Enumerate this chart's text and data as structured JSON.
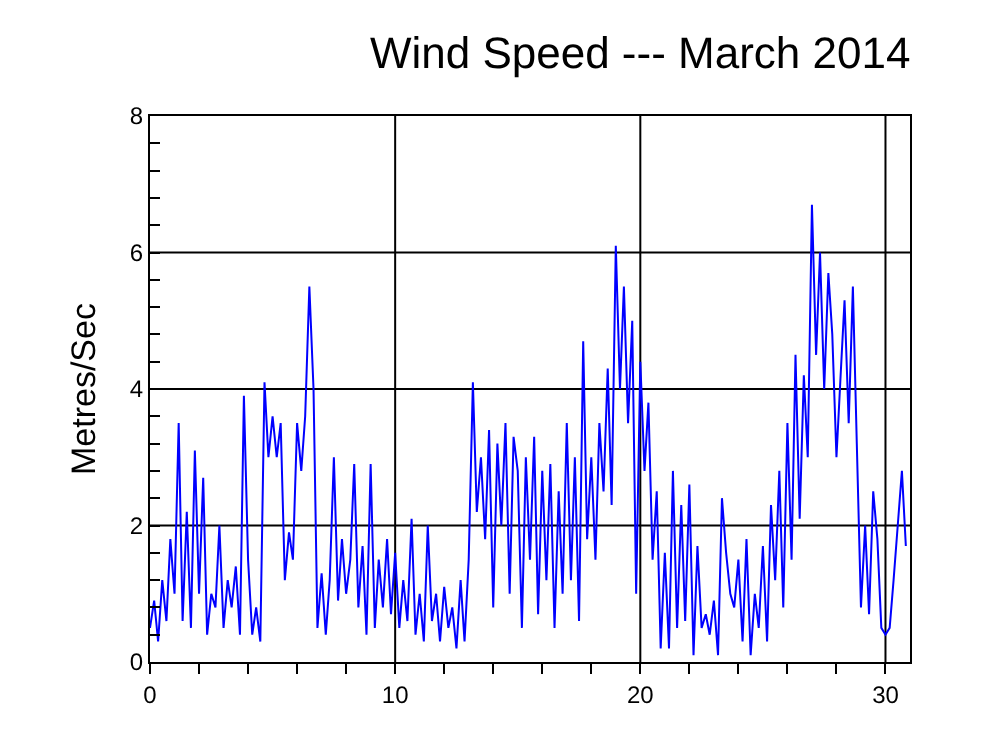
{
  "chart_data": {
    "type": "line",
    "title": "Wind Speed --- March 2014",
    "ylabel": "Metres/Sec",
    "x": [
      0,
      0.17,
      0.33,
      0.5,
      0.67,
      0.83,
      1,
      1.17,
      1.33,
      1.5,
      1.67,
      1.83,
      2,
      2.17,
      2.33,
      2.5,
      2.67,
      2.83,
      3,
      3.17,
      3.33,
      3.5,
      3.67,
      3.83,
      4,
      4.17,
      4.33,
      4.5,
      4.67,
      4.83,
      5,
      5.17,
      5.33,
      5.5,
      5.67,
      5.83,
      6,
      6.17,
      6.33,
      6.5,
      6.67,
      6.83,
      7,
      7.17,
      7.33,
      7.5,
      7.67,
      7.83,
      8,
      8.17,
      8.33,
      8.5,
      8.67,
      8.83,
      9,
      9.17,
      9.33,
      9.5,
      9.67,
      9.83,
      10,
      10.17,
      10.33,
      10.5,
      10.67,
      10.83,
      11,
      11.17,
      11.33,
      11.5,
      11.67,
      11.83,
      12,
      12.17,
      12.33,
      12.5,
      12.67,
      12.83,
      13,
      13.17,
      13.33,
      13.5,
      13.67,
      13.83,
      14,
      14.17,
      14.33,
      14.5,
      14.67,
      14.83,
      15,
      15.17,
      15.33,
      15.5,
      15.67,
      15.83,
      16,
      16.17,
      16.33,
      16.5,
      16.67,
      16.83,
      17,
      17.17,
      17.33,
      17.5,
      17.67,
      17.83,
      18,
      18.17,
      18.33,
      18.5,
      18.67,
      18.83,
      19,
      19.17,
      19.33,
      19.5,
      19.67,
      19.83,
      20,
      20.17,
      20.33,
      20.5,
      20.67,
      20.83,
      21,
      21.17,
      21.33,
      21.5,
      21.67,
      21.83,
      22,
      22.17,
      22.33,
      22.5,
      22.67,
      22.83,
      23,
      23.17,
      23.33,
      23.5,
      23.67,
      23.83,
      24,
      24.17,
      24.33,
      24.5,
      24.67,
      24.83,
      25,
      25.17,
      25.33,
      25.5,
      25.67,
      25.83,
      26,
      26.17,
      26.33,
      26.5,
      26.67,
      26.83,
      27,
      27.17,
      27.33,
      27.5,
      27.67,
      27.83,
      28,
      28.17,
      28.33,
      28.5,
      28.67,
      28.83,
      29,
      29.17,
      29.33,
      29.5,
      29.67,
      29.83,
      30,
      30.17,
      30.33,
      30.5,
      30.67,
      30.83
    ],
    "series": [
      {
        "color": "#0000ff",
        "values": [
          0.5,
          0.9,
          0.3,
          1.2,
          0.6,
          1.8,
          1.0,
          3.5,
          0.6,
          2.2,
          0.5,
          3.1,
          1.0,
          2.7,
          0.4,
          1.0,
          0.8,
          2.0,
          0.5,
          1.2,
          0.8,
          1.4,
          0.4,
          3.9,
          1.5,
          0.4,
          0.8,
          0.3,
          4.1,
          3.0,
          3.6,
          3.0,
          3.5,
          1.2,
          1.9,
          1.5,
          3.5,
          2.8,
          3.6,
          5.5,
          4.0,
          0.5,
          1.3,
          0.4,
          1.2,
          3.0,
          0.9,
          1.8,
          1.0,
          1.5,
          2.9,
          0.8,
          1.7,
          0.4,
          2.9,
          0.5,
          1.5,
          0.8,
          1.8,
          0.7,
          1.6,
          0.5,
          1.2,
          0.6,
          2.1,
          0.4,
          1.0,
          0.3,
          2.0,
          0.6,
          1.0,
          0.3,
          1.1,
          0.5,
          0.8,
          0.2,
          1.2,
          0.3,
          1.5,
          4.1,
          2.2,
          3.0,
          1.8,
          3.4,
          0.8,
          3.2,
          2.0,
          3.5,
          1.0,
          3.3,
          2.8,
          0.5,
          3.0,
          1.5,
          3.3,
          0.7,
          2.8,
          1.2,
          2.9,
          0.5,
          2.5,
          1.0,
          3.5,
          1.2,
          3.0,
          0.6,
          4.7,
          1.8,
          3.0,
          1.5,
          3.5,
          2.5,
          4.3,
          2.3,
          6.1,
          4.0,
          5.5,
          3.5,
          5.0,
          1.0,
          4.4,
          2.8,
          3.8,
          1.5,
          2.5,
          0.2,
          1.6,
          0.2,
          2.8,
          0.5,
          2.3,
          0.6,
          2.6,
          0.1,
          1.7,
          0.5,
          0.7,
          0.4,
          0.9,
          0.1,
          2.4,
          1.6,
          1.0,
          0.8,
          1.5,
          0.3,
          1.8,
          0.1,
          1.0,
          0.5,
          1.7,
          0.3,
          2.3,
          1.2,
          2.8,
          0.8,
          3.5,
          1.5,
          4.5,
          2.1,
          4.2,
          3.0,
          6.7,
          4.5,
          6.0,
          4.0,
          5.7,
          4.8,
          3.0,
          4.2,
          5.3,
          3.5,
          5.5,
          3.2,
          0.8,
          2.0,
          0.7,
          2.5,
          1.8,
          0.5,
          0.4,
          0.5,
          1.2,
          2.0,
          2.8,
          1.7
        ]
      }
    ],
    "xlim": [
      0,
      31
    ],
    "xticks": [
      0,
      {
        "value": 2,
        "label": null
      },
      {
        "value": 4,
        "label": null
      },
      {
        "value": 6,
        "label": null
      },
      {
        "value": 8,
        "label": null
      },
      10,
      {
        "value": 12,
        "label": null
      },
      {
        "value": 14,
        "label": null
      },
      {
        "value": 16,
        "label": null
      },
      {
        "value": 18,
        "label": null
      },
      20,
      {
        "value": 22,
        "label": null
      },
      {
        "value": 24,
        "label": null
      },
      {
        "value": 26,
        "label": null
      },
      {
        "value": 28,
        "label": null
      },
      30
    ],
    "ylim": [
      0,
      8
    ],
    "yticks": [
      0,
      {
        "value": 0.4,
        "label": null
      },
      {
        "value": 0.8,
        "label": null
      },
      {
        "value": 1.2,
        "label": null
      },
      {
        "value": 1.6,
        "label": null
      },
      2,
      {
        "value": 2.4,
        "label": null
      },
      {
        "value": 2.8,
        "label": null
      },
      {
        "value": 3.2,
        "label": null
      },
      {
        "value": 3.6,
        "label": null
      },
      4,
      {
        "value": 4.4,
        "label": null
      },
      {
        "value": 4.8,
        "label": null
      },
      {
        "value": 5.2,
        "label": null
      },
      {
        "value": 5.6,
        "label": null
      },
      6,
      {
        "value": 6.4,
        "label": null
      },
      {
        "value": 6.8,
        "label": null
      },
      {
        "value": 7.2,
        "label": null
      },
      {
        "value": 7.6,
        "label": null
      },
      8
    ],
    "grid": true,
    "marker": "none",
    "line_style": "solid"
  }
}
